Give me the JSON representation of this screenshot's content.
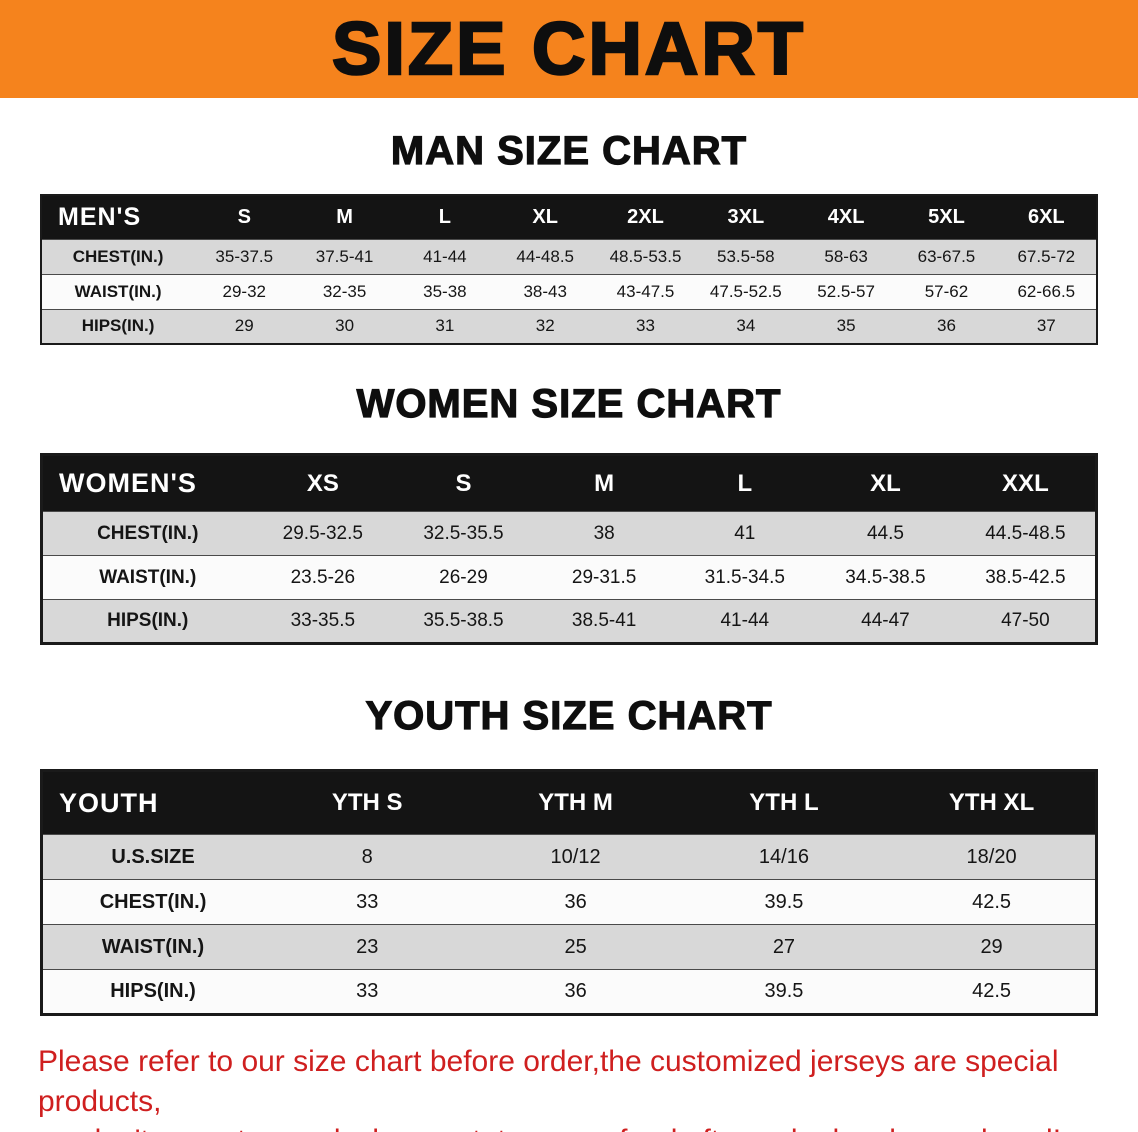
{
  "banner": {
    "title": "SIZE CHART",
    "bg_color": "#f5831d",
    "text_color": "#0e0e0e"
  },
  "sections": [
    {
      "id": "men",
      "heading": "MAN SIZE CHART",
      "table": {
        "header": [
          "MEN'S",
          "S",
          "M",
          "L",
          "XL",
          "2XL",
          "3XL",
          "4XL",
          "5XL",
          "6XL"
        ],
        "rows": [
          [
            "CHEST(IN.)",
            "35-37.5",
            "37.5-41",
            "41-44",
            "44-48.5",
            "48.5-53.5",
            "53.5-58",
            "58-63",
            "63-67.5",
            "67.5-72"
          ],
          [
            "WAIST(IN.)",
            "29-32",
            "32-35",
            "35-38",
            "38-43",
            "43-47.5",
            "47.5-52.5",
            "52.5-57",
            "57-62",
            "62-66.5"
          ],
          [
            "HIPS(IN.)",
            "29",
            "30",
            "31",
            "32",
            "33",
            "34",
            "35",
            "36",
            "37"
          ]
        ]
      }
    },
    {
      "id": "women",
      "heading": "WOMEN SIZE CHART",
      "table": {
        "header": [
          "WOMEN'S",
          "XS",
          "S",
          "M",
          "L",
          "XL",
          "XXL"
        ],
        "rows": [
          [
            "CHEST(IN.)",
            "29.5-32.5",
            "32.5-35.5",
            "38",
            "41",
            "44.5",
            "44.5-48.5"
          ],
          [
            "WAIST(IN.)",
            "23.5-26",
            "26-29",
            "29-31.5",
            "31.5-34.5",
            "34.5-38.5",
            "38.5-42.5"
          ],
          [
            "HIPS(IN.)",
            "33-35.5",
            "35.5-38.5",
            "38.5-41",
            "41-44",
            "44-47",
            "47-50"
          ]
        ]
      }
    },
    {
      "id": "youth",
      "heading": "YOUTH SIZE CHART",
      "table": {
        "header": [
          "YOUTH",
          "YTH S",
          "YTH M",
          "YTH L",
          "YTH XL"
        ],
        "rows": [
          [
            "U.S.SIZE",
            "8",
            "10/12",
            "14/16",
            "18/20"
          ],
          [
            "CHEST(IN.)",
            "33",
            "36",
            "39.5",
            "42.5"
          ],
          [
            "WAIST(IN.)",
            "23",
            "25",
            "27",
            "29"
          ],
          [
            "HIPS(IN.)",
            "33",
            "36",
            "39.5",
            "42.5"
          ]
        ]
      }
    }
  ],
  "disclaimer": {
    "color": "#cf1f1f",
    "line1": "Please refer to our size chart before order,the customized jerseys are special products,",
    "line2": "we don't accept cancel, change, teturn or refund after order has been placed!"
  }
}
